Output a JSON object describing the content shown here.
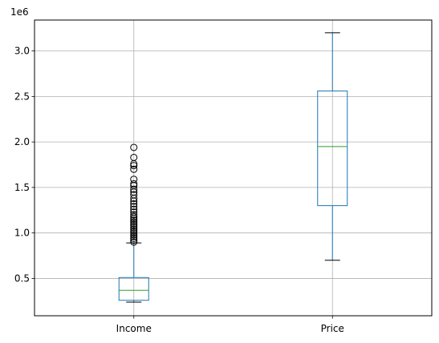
{
  "chart_data": {
    "type": "boxplot",
    "scale_label": "1e6",
    "categories": [
      "Income",
      "Price"
    ],
    "y_ticks": [
      0.5,
      1.0,
      1.5,
      2.0,
      2.5,
      3.0
    ],
    "y_tick_labels": [
      "0.5",
      "1.0",
      "1.5",
      "2.0",
      "2.5",
      "3.0"
    ],
    "ylim": [
      0.09,
      3.34
    ],
    "grid": true,
    "boxes": [
      {
        "name": "Income",
        "whisker_low": 0.24,
        "q1": 0.26,
        "median": 0.37,
        "q3": 0.51,
        "whisker_high": 0.89,
        "outliers": [
          0.9,
          0.92,
          0.94,
          0.96,
          0.98,
          1.0,
          1.02,
          1.04,
          1.06,
          1.08,
          1.1,
          1.12,
          1.14,
          1.16,
          1.18,
          1.2,
          1.23,
          1.26,
          1.29,
          1.32,
          1.35,
          1.38,
          1.42,
          1.45,
          1.48,
          1.52,
          1.54,
          1.59,
          1.7,
          1.74,
          1.76,
          1.83,
          1.94
        ]
      },
      {
        "name": "Price",
        "whisker_low": 0.7,
        "q1": 1.3,
        "median": 1.95,
        "q3": 2.56,
        "whisker_high": 3.2,
        "outliers": []
      }
    ],
    "colors": {
      "box": "#1f77b4",
      "median": "#2ca02c",
      "whisker": "#1f77b4",
      "cap": "#000000",
      "grid": "#b0b0b0",
      "axis": "#000000"
    }
  }
}
